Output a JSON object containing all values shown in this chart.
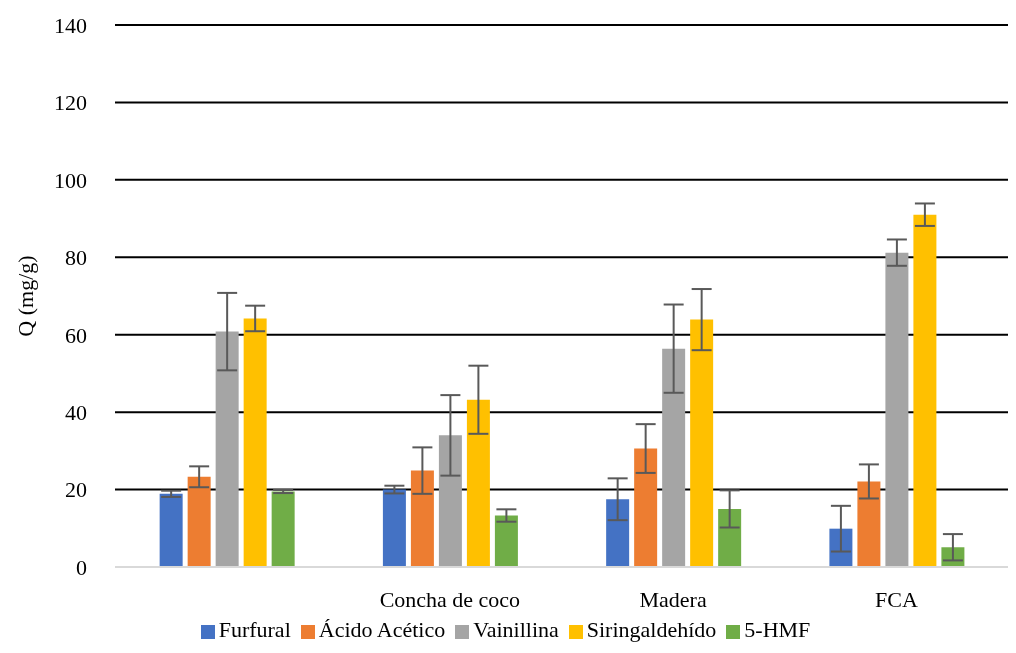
{
  "chart_data": {
    "type": "bar",
    "ylabel": "Q (mg/g)",
    "categories": [
      null,
      "Concha de coco",
      "Madera",
      "FCA"
    ],
    "series": [
      {
        "name": "Furfural",
        "color": "#4472c4",
        "values": [
          18.9,
          20.0,
          17.5,
          9.9
        ],
        "errors": [
          0.8,
          1,
          5.4,
          5.9
        ]
      },
      {
        "name": "Ácido Acético",
        "color": "#ed7d31",
        "values": [
          23.3,
          24.9,
          30.6,
          22.1
        ],
        "errors": [
          2.7,
          6,
          6.3,
          4.4
        ]
      },
      {
        "name": "Vainillina",
        "color": "#a5a5a5",
        "values": [
          60.8,
          34.0,
          56.4,
          81.2
        ],
        "errors": [
          10,
          10.4,
          11.4,
          3.4
        ]
      },
      {
        "name": "Siringaldehído",
        "color": "#ffc000",
        "values": [
          64.2,
          43.2,
          63.9,
          91.0
        ],
        "errors": [
          3.3,
          8.8,
          7.9,
          2.9
        ]
      },
      {
        "name": "5-HMF",
        "color": "#70ad47",
        "values": [
          19.5,
          13.3,
          15.0,
          5.1
        ],
        "errors": [
          0.4,
          1.6,
          4.8,
          3.4
        ]
      }
    ],
    "ylim": [
      0,
      140
    ],
    "yticks": [
      0,
      20,
      40,
      60,
      80,
      100,
      120,
      140
    ],
    "grid": "y",
    "legend": "bottom"
  }
}
